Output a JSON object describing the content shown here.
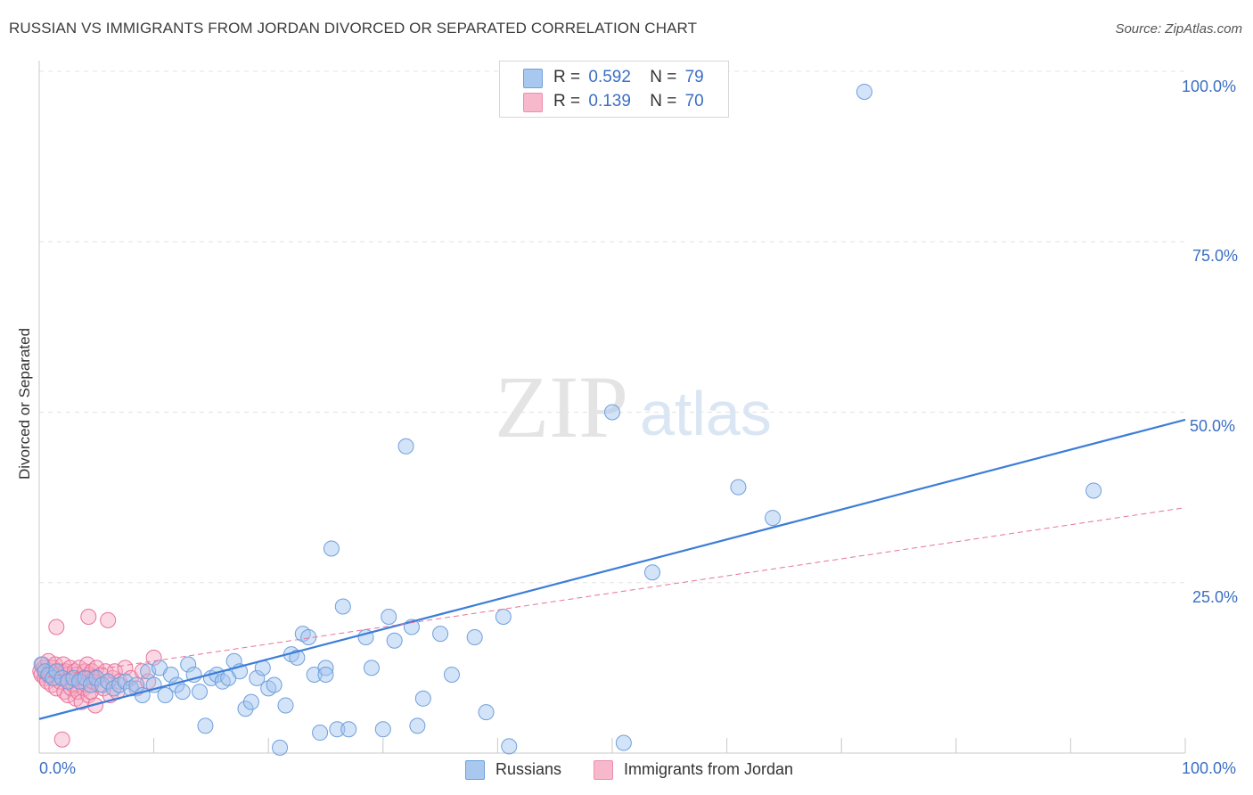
{
  "title": "RUSSIAN VS IMMIGRANTS FROM JORDAN DIVORCED OR SEPARATED CORRELATION CHART",
  "source": "Source: ZipAtlas.com",
  "watermark": {
    "zip": "ZIP",
    "atlas": "atlas"
  },
  "legend": {
    "rows": [
      {
        "r_label": "R =",
        "r_value": "0.592",
        "n_label": "N =",
        "n_value": "79",
        "color": "#a9c8f0"
      },
      {
        "r_label": "R =",
        "r_value": "0.139",
        "n_label": "N =",
        "n_value": "70",
        "color": "#f7b8cc"
      }
    ]
  },
  "bottom_legend": {
    "series1": "Russians",
    "series2": "Immigrants from Jordan"
  },
  "colors": {
    "blue": "#3b7dd8",
    "blue_fill": "rgba(160,195,240,0.45)",
    "pink": "#e8739a",
    "pink_fill": "rgba(247,170,195,0.45)",
    "tick": "#3b6fc4"
  },
  "chart_data": {
    "type": "scatter",
    "title": "RUSSIAN VS IMMIGRANTS FROM JORDAN DIVORCED OR SEPARATED CORRELATION CHART",
    "xlabel": "",
    "ylabel": "Divorced or Separated",
    "xlim": [
      0,
      100
    ],
    "ylim": [
      0,
      100
    ],
    "x_tick_labels": [
      "0.0%",
      "100.0%"
    ],
    "y_tick_labels": [
      "25.0%",
      "50.0%",
      "75.0%",
      "100.0%"
    ],
    "y_ticks": [
      25,
      50,
      75,
      100
    ],
    "grid": true,
    "series": [
      {
        "name": "Russians",
        "r": 0.592,
        "n": 79,
        "trend": [
          [
            0,
            5.0
          ],
          [
            100,
            48.9
          ]
        ],
        "points": [
          [
            0.2,
            13
          ],
          [
            0.5,
            12
          ],
          [
            0.8,
            11.5
          ],
          [
            1.2,
            11
          ],
          [
            1.5,
            12
          ],
          [
            2,
            11
          ],
          [
            2.5,
            10.5
          ],
          [
            3,
            11
          ],
          [
            3.5,
            10.5
          ],
          [
            4,
            11
          ],
          [
            4.5,
            10
          ],
          [
            5,
            11
          ],
          [
            5.5,
            10
          ],
          [
            6,
            10.5
          ],
          [
            6.5,
            9.5
          ],
          [
            7,
            10
          ],
          [
            7.5,
            10.5
          ],
          [
            8,
            9.5
          ],
          [
            8.5,
            10
          ],
          [
            9,
            8.5
          ],
          [
            9.5,
            12
          ],
          [
            10,
            10
          ],
          [
            10.5,
            12.5
          ],
          [
            11,
            8.5
          ],
          [
            11.5,
            11.5
          ],
          [
            12,
            10
          ],
          [
            12.5,
            9
          ],
          [
            13,
            13
          ],
          [
            13.5,
            11.5
          ],
          [
            14,
            9
          ],
          [
            14.5,
            4
          ],
          [
            15,
            11
          ],
          [
            15.5,
            11.5
          ],
          [
            16,
            10.5
          ],
          [
            16.5,
            11
          ],
          [
            17,
            13.5
          ],
          [
            17.5,
            12
          ],
          [
            18,
            6.5
          ],
          [
            18.5,
            7.5
          ],
          [
            19,
            11
          ],
          [
            19.5,
            12.5
          ],
          [
            20,
            9.5
          ],
          [
            20.5,
            10
          ],
          [
            21,
            0.8
          ],
          [
            21.5,
            7
          ],
          [
            22,
            14.5
          ],
          [
            22.5,
            14
          ],
          [
            23,
            17.5
          ],
          [
            23.5,
            17
          ],
          [
            24,
            11.5
          ],
          [
            24.5,
            3
          ],
          [
            25,
            12.5
          ],
          [
            25,
            11.5
          ],
          [
            25.5,
            30
          ],
          [
            26,
            3.5
          ],
          [
            26.5,
            21.5
          ],
          [
            27,
            3.5
          ],
          [
            28.5,
            17
          ],
          [
            29,
            12.5
          ],
          [
            30,
            3.5
          ],
          [
            30.5,
            20
          ],
          [
            31,
            16.5
          ],
          [
            32,
            45
          ],
          [
            32.5,
            18.5
          ],
          [
            33,
            4
          ],
          [
            33.5,
            8
          ],
          [
            35,
            17.5
          ],
          [
            36,
            11.5
          ],
          [
            38,
            17
          ],
          [
            39,
            6
          ],
          [
            40.5,
            20
          ],
          [
            41,
            1
          ],
          [
            50,
            50
          ],
          [
            51,
            1.5
          ],
          [
            53.5,
            26.5
          ],
          [
            61,
            39
          ],
          [
            64,
            34.5
          ],
          [
            72,
            97
          ],
          [
            92,
            38.5
          ]
        ]
      },
      {
        "name": "Immigrants from Jordan",
        "r": 0.139,
        "n": 70,
        "trend": [
          [
            0,
            11.0
          ],
          [
            100,
            36.0
          ]
        ],
        "points": [
          [
            0.1,
            12
          ],
          [
            0.2,
            11.5
          ],
          [
            0.3,
            13
          ],
          [
            0.4,
            12.5
          ],
          [
            0.5,
            11
          ],
          [
            0.6,
            12
          ],
          [
            0.7,
            10.5
          ],
          [
            0.8,
            13.5
          ],
          [
            0.9,
            11.5
          ],
          [
            1,
            12
          ],
          [
            1.1,
            10
          ],
          [
            1.2,
            12.5
          ],
          [
            1.3,
            11
          ],
          [
            1.4,
            13
          ],
          [
            1.5,
            9.5
          ],
          [
            1.6,
            12
          ],
          [
            1.7,
            11.5
          ],
          [
            1.8,
            10.5
          ],
          [
            1.9,
            12
          ],
          [
            2,
            11
          ],
          [
            2.1,
            13
          ],
          [
            2.2,
            9
          ],
          [
            2.3,
            12
          ],
          [
            2.4,
            11.5
          ],
          [
            2.5,
            8.5
          ],
          [
            2.6,
            10.5
          ],
          [
            2.7,
            12.5
          ],
          [
            2.8,
            9.5
          ],
          [
            2.9,
            11
          ],
          [
            3,
            10
          ],
          [
            3.1,
            12
          ],
          [
            3.2,
            8
          ],
          [
            3.3,
            11.5
          ],
          [
            3.4,
            9
          ],
          [
            3.5,
            12.5
          ],
          [
            3.6,
            10.5
          ],
          [
            3.7,
            7.5
          ],
          [
            3.8,
            11
          ],
          [
            3.9,
            9.5
          ],
          [
            4,
            12
          ],
          [
            4.1,
            10
          ],
          [
            4.2,
            13
          ],
          [
            4.3,
            8.5
          ],
          [
            4.4,
            11.5
          ],
          [
            4.5,
            9
          ],
          [
            4.6,
            12
          ],
          [
            4.7,
            10.5
          ],
          [
            4.8,
            11
          ],
          [
            4.9,
            7
          ],
          [
            5,
            12.5
          ],
          [
            5.2,
            10
          ],
          [
            5.4,
            11.5
          ],
          [
            5.6,
            9.5
          ],
          [
            5.8,
            12
          ],
          [
            6,
            10.5
          ],
          [
            6.2,
            8.5
          ],
          [
            6.4,
            11
          ],
          [
            6.6,
            12
          ],
          [
            6.8,
            9
          ],
          [
            7,
            10.5
          ],
          [
            7.5,
            12.5
          ],
          [
            8,
            11
          ],
          [
            8.5,
            9.5
          ],
          [
            9,
            12
          ],
          [
            9.5,
            10.5
          ],
          [
            10,
            14
          ],
          [
            1.5,
            18.5
          ],
          [
            2,
            2
          ],
          [
            4.3,
            20
          ],
          [
            6,
            19.5
          ]
        ]
      }
    ]
  }
}
